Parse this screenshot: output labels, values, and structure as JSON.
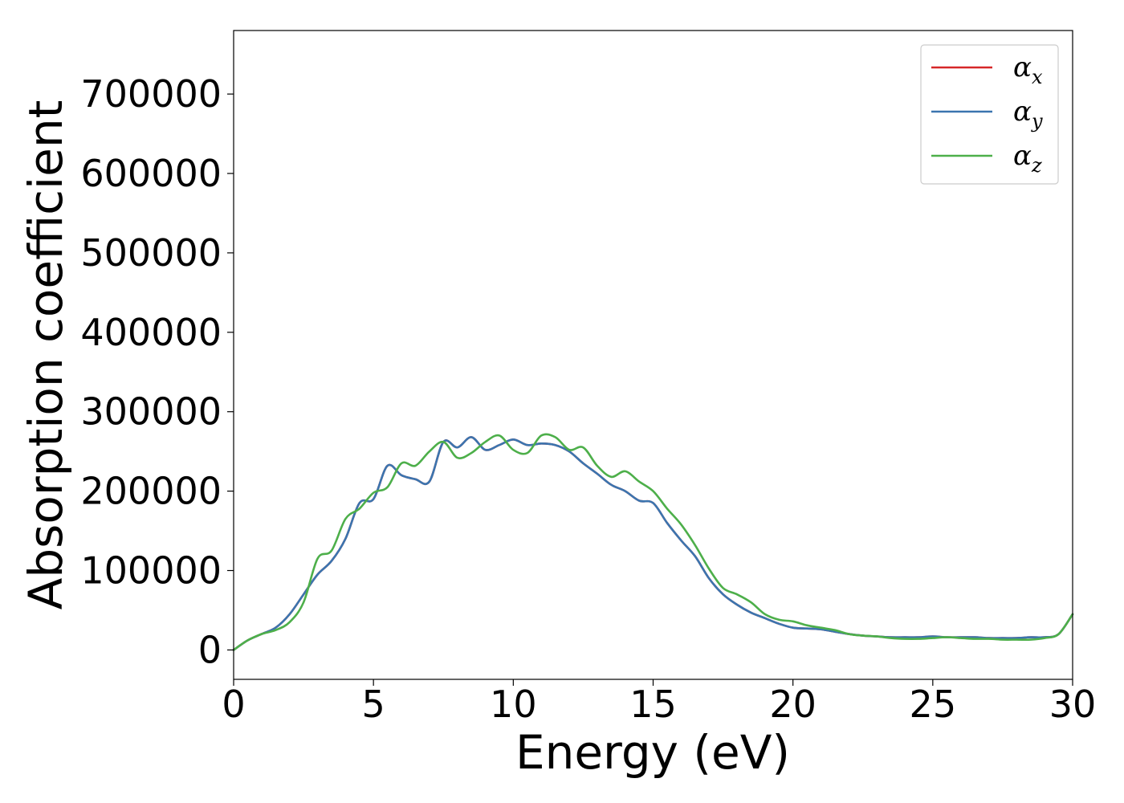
{
  "chart_data": {
    "type": "line",
    "xlabel": "Energy (eV)",
    "ylabel": "Absorption coefficient",
    "xlim": [
      0,
      30
    ],
    "ylim": [
      -37000,
      780000
    ],
    "xticks": [
      0,
      5,
      10,
      15,
      20,
      25,
      30
    ],
    "yticks": [
      0,
      100000,
      200000,
      300000,
      400000,
      500000,
      600000,
      700000
    ],
    "grid": false,
    "legend_position": "top-right",
    "series": [
      {
        "name": "α_x",
        "legend_base": "α",
        "legend_sub": "x",
        "color": "#d62728",
        "x": [
          0,
          0.5,
          1,
          1.5,
          2,
          2.5,
          3,
          3.5,
          4,
          4.5,
          5,
          5.5,
          6,
          6.5,
          7,
          7.5,
          8,
          8.5,
          9,
          9.5,
          10,
          10.5,
          11,
          11.5,
          12,
          12.5,
          13,
          13.5,
          14,
          14.5,
          15,
          15.5,
          16,
          16.5,
          17,
          17.5,
          18,
          18.5,
          19,
          19.5,
          20,
          20.5,
          21,
          21.5,
          22,
          22.5,
          23,
          23.5,
          24,
          24.5,
          25,
          25.5,
          26,
          26.5,
          27,
          27.5,
          28,
          28.5,
          29,
          29.5,
          30
        ],
        "y": [
          0,
          12000,
          20000,
          28000,
          45000,
          70000,
          95000,
          112000,
          140000,
          185000,
          190000,
          232000,
          220000,
          215000,
          212000,
          262000,
          255000,
          268000,
          252000,
          258000,
          265000,
          258000,
          260000,
          258000,
          250000,
          235000,
          222000,
          208000,
          200000,
          188000,
          185000,
          160000,
          138000,
          118000,
          90000,
          70000,
          57000,
          47000,
          40000,
          33000,
          28000,
          27000,
          26000,
          23000,
          20000,
          18000,
          17000,
          16000,
          16000,
          16000,
          17000,
          16000,
          16000,
          16000,
          15000,
          15000,
          15000,
          16000,
          16000,
          20000,
          45000
        ]
      },
      {
        "name": "α_y",
        "legend_base": "α",
        "legend_sub": "y",
        "color": "#3b75af",
        "x": [
          0,
          0.5,
          1,
          1.5,
          2,
          2.5,
          3,
          3.5,
          4,
          4.5,
          5,
          5.5,
          6,
          6.5,
          7,
          7.5,
          8,
          8.5,
          9,
          9.5,
          10,
          10.5,
          11,
          11.5,
          12,
          12.5,
          13,
          13.5,
          14,
          14.5,
          15,
          15.5,
          16,
          16.5,
          17,
          17.5,
          18,
          18.5,
          19,
          19.5,
          20,
          20.5,
          21,
          21.5,
          22,
          22.5,
          23,
          23.5,
          24,
          24.5,
          25,
          25.5,
          26,
          26.5,
          27,
          27.5,
          28,
          28.5,
          29,
          29.5,
          30
        ],
        "y": [
          0,
          12000,
          20000,
          28000,
          45000,
          70000,
          95000,
          112000,
          140000,
          185000,
          190000,
          232000,
          220000,
          215000,
          212000,
          262000,
          255000,
          268000,
          252000,
          258000,
          265000,
          258000,
          260000,
          258000,
          250000,
          235000,
          222000,
          208000,
          200000,
          188000,
          185000,
          160000,
          138000,
          118000,
          90000,
          70000,
          57000,
          47000,
          40000,
          33000,
          28000,
          27000,
          26000,
          23000,
          20000,
          18000,
          17000,
          16000,
          16000,
          16000,
          17000,
          16000,
          16000,
          16000,
          15000,
          15000,
          15000,
          16000,
          16000,
          20000,
          45000
        ]
      },
      {
        "name": "α_z",
        "legend_base": "α",
        "legend_sub": "z",
        "color": "#4daf4a",
        "x": [
          0,
          0.5,
          1,
          1.5,
          2,
          2.5,
          3,
          3.5,
          4,
          4.5,
          5,
          5.5,
          6,
          6.5,
          7,
          7.5,
          8,
          8.5,
          9,
          9.5,
          10,
          10.5,
          11,
          11.5,
          12,
          12.5,
          13,
          13.5,
          14,
          14.5,
          15,
          15.5,
          16,
          16.5,
          17,
          17.5,
          18,
          18.5,
          19,
          19.5,
          20,
          20.5,
          21,
          21.5,
          22,
          22.5,
          23,
          23.5,
          24,
          24.5,
          25,
          25.5,
          26,
          26.5,
          27,
          27.5,
          28,
          28.5,
          29,
          29.5,
          30
        ],
        "y": [
          0,
          12000,
          20000,
          25000,
          35000,
          60000,
          115000,
          125000,
          165000,
          178000,
          198000,
          205000,
          235000,
          232000,
          250000,
          262000,
          242000,
          248000,
          262000,
          270000,
          252000,
          248000,
          270000,
          268000,
          252000,
          255000,
          232000,
          218000,
          225000,
          212000,
          200000,
          178000,
          158000,
          132000,
          102000,
          78000,
          70000,
          60000,
          45000,
          38000,
          36000,
          31000,
          28000,
          25000,
          20000,
          18000,
          17000,
          15000,
          14000,
          14000,
          15000,
          16000,
          15000,
          14000,
          14000,
          13000,
          13000,
          13000,
          15000,
          20000,
          45000
        ]
      }
    ]
  }
}
